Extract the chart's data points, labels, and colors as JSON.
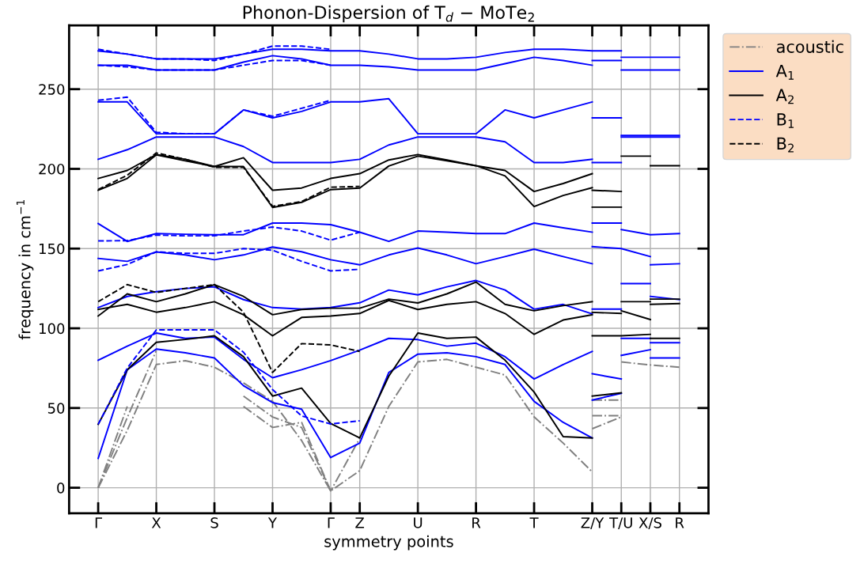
{
  "chart_data": {
    "type": "line",
    "title": "Phonon-Dispersion of T$_{d}$ − MoTe$_{2}$",
    "xlabel": "symmetry points",
    "ylabel": "frequency in cm$^{−1}$",
    "categories": [
      "Γ",
      null,
      "X",
      null,
      "S",
      null,
      "Y",
      null,
      "Γ",
      "Z",
      null,
      "U",
      null,
      "R",
      null,
      "T",
      null,
      "Z/Y",
      "T/U",
      "X/S",
      "R"
    ],
    "ylim": [
      -16,
      290
    ],
    "yticks": [
      0,
      50,
      100,
      150,
      200,
      250
    ],
    "grid": true,
    "legend": "right",
    "series": [
      {
        "name": "acoustic",
        "color": "#808080",
        "line_style": "dashdot",
        "values": [
          0,
          36,
          77.3,
          79.7,
          75.6,
          65.7,
          54.2,
          29.6,
          -2,
          10.7,
          51,
          78.9,
          80.5,
          75.6,
          70.7,
          44.4,
          28,
          9.9,
          null,
          null,
          null
        ]
      },
      {
        "color": "#808080",
        "line_style": "dashdot",
        "values": [
          null,
          null,
          null,
          null,
          null,
          null,
          null,
          null,
          null,
          null,
          null,
          null,
          null,
          null,
          null,
          null,
          null,
          55,
          55,
          null,
          null
        ]
      },
      {
        "color": "#808080",
        "line_style": "dashdot",
        "values": [
          null,
          null,
          null,
          null,
          null,
          null,
          null,
          null,
          null,
          null,
          null,
          null,
          null,
          null,
          null,
          null,
          null,
          null,
          78.9,
          77,
          75.6
        ]
      },
      {
        "color": "#808080",
        "line_style": "dashdot",
        "values": [
          0,
          44,
          86,
          null,
          null,
          57.5,
          44.4,
          37.8,
          -2,
          31,
          null,
          null,
          null,
          null,
          null,
          null,
          null,
          null,
          null,
          null,
          null
        ]
      },
      {
        "color": "#808080",
        "line_style": "dashdot",
        "values": [
          null,
          null,
          null,
          null,
          null,
          null,
          null,
          null,
          null,
          null,
          null,
          null,
          null,
          null,
          null,
          null,
          null,
          45.2,
          45.2,
          null,
          null
        ]
      },
      {
        "color": "#808080",
        "line_style": "dashdot",
        "values": [
          0,
          51,
          null,
          null,
          null,
          51,
          37.8,
          41,
          -2,
          null,
          null,
          null,
          null,
          null,
          null,
          null,
          null,
          null,
          null,
          null,
          null
        ]
      },
      {
        "color": "#808080",
        "line_style": "dashdot",
        "values": [
          null,
          null,
          null,
          null,
          null,
          null,
          null,
          null,
          null,
          null,
          null,
          null,
          null,
          null,
          null,
          null,
          null,
          37,
          44.4,
          null,
          null
        ]
      },
      {
        "name": "A$_{1}$",
        "color": "#0000ff",
        "line_style": "solid",
        "values": [
          274,
          272,
          269,
          269,
          269,
          272,
          275,
          275,
          274,
          274,
          272,
          269,
          269,
          270,
          273,
          275,
          275,
          274,
          274,
          null,
          null
        ]
      },
      {
        "color": "#0000ff",
        "line_style": "solid",
        "values": [
          null,
          null,
          null,
          null,
          null,
          null,
          null,
          null,
          null,
          null,
          null,
          null,
          null,
          null,
          null,
          null,
          null,
          null,
          270,
          270,
          270
        ]
      },
      {
        "color": "#0000ff",
        "line_style": "solid",
        "values": [
          265,
          265,
          262,
          262,
          262,
          267,
          271,
          269,
          265,
          265,
          264,
          262,
          262,
          262,
          266,
          270,
          268,
          265,
          null,
          null,
          null
        ]
      },
      {
        "color": "#0000ff",
        "line_style": "solid",
        "values": [
          null,
          null,
          null,
          null,
          null,
          null,
          null,
          null,
          null,
          null,
          null,
          null,
          null,
          null,
          null,
          null,
          null,
          268,
          268,
          null,
          null
        ]
      },
      {
        "color": "#0000ff",
        "line_style": "solid",
        "values": [
          null,
          null,
          null,
          null,
          null,
          null,
          null,
          null,
          null,
          null,
          null,
          null,
          null,
          null,
          null,
          null,
          null,
          null,
          262,
          262,
          262
        ]
      },
      {
        "color": "#0000ff",
        "line_style": "solid",
        "values": [
          242,
          242,
          222,
          222,
          222,
          237,
          232,
          236,
          242,
          242,
          244,
          222,
          222,
          222,
          237,
          232,
          237,
          242,
          null,
          null,
          null
        ]
      },
      {
        "color": "#0000ff",
        "line_style": "solid",
        "values": [
          null,
          null,
          null,
          null,
          null,
          null,
          null,
          null,
          null,
          null,
          null,
          null,
          null,
          null,
          null,
          null,
          null,
          232,
          232,
          null,
          null
        ]
      },
      {
        "color": "#0000ff",
        "line_style": "solid",
        "values": [
          null,
          null,
          null,
          null,
          null,
          null,
          null,
          null,
          null,
          null,
          null,
          null,
          null,
          null,
          null,
          null,
          null,
          null,
          221,
          221,
          221
        ]
      },
      {
        "color": "#0000ff",
        "line_style": "solid",
        "values": [
          206,
          212,
          220,
          220,
          220,
          214,
          204,
          204,
          204,
          206,
          215,
          220,
          220,
          220,
          217,
          204,
          204,
          206,
          null,
          null,
          null
        ]
      },
      {
        "color": "#0000ff",
        "line_style": "solid",
        "values": [
          null,
          null,
          null,
          null,
          null,
          null,
          null,
          null,
          null,
          null,
          null,
          null,
          null,
          null,
          null,
          null,
          null,
          204,
          204,
          null,
          null
        ]
      },
      {
        "color": "#0000ff",
        "line_style": "solid",
        "values": [
          null,
          null,
          null,
          null,
          null,
          null,
          null,
          null,
          null,
          null,
          null,
          null,
          null,
          null,
          null,
          null,
          null,
          null,
          220,
          220,
          220
        ]
      },
      {
        "color": "#0000ff",
        "line_style": "solid",
        "values": [
          165.7,
          154.5,
          159.4,
          159,
          158.7,
          158.7,
          166,
          166,
          165,
          160.3,
          154.5,
          161,
          160.3,
          159.4,
          159.4,
          166,
          163,
          160.3,
          null,
          null,
          null
        ]
      },
      {
        "color": "#0000ff",
        "line_style": "solid",
        "values": [
          null,
          null,
          null,
          null,
          null,
          null,
          null,
          null,
          null,
          null,
          null,
          null,
          null,
          null,
          null,
          null,
          null,
          166,
          166,
          null,
          null
        ]
      },
      {
        "color": "#0000ff",
        "line_style": "solid",
        "values": [
          null,
          null,
          null,
          null,
          null,
          null,
          null,
          null,
          null,
          null,
          null,
          null,
          null,
          null,
          null,
          null,
          null,
          null,
          161.9,
          158.7,
          159.4
        ]
      },
      {
        "color": "#0000ff",
        "line_style": "solid",
        "values": [
          143.8,
          142,
          147.9,
          146,
          143,
          146,
          151,
          148,
          143,
          139.8,
          146,
          150.4,
          146,
          140.5,
          145,
          149.6,
          145,
          140.5,
          null,
          null,
          null
        ]
      },
      {
        "color": "#0000ff",
        "line_style": "solid",
        "values": [
          null,
          null,
          null,
          null,
          null,
          null,
          null,
          null,
          null,
          null,
          null,
          null,
          null,
          null,
          null,
          null,
          null,
          151.2,
          150,
          145,
          null
        ]
      },
      {
        "color": "#0000ff",
        "line_style": "solid",
        "values": [
          null,
          null,
          null,
          null,
          null,
          null,
          null,
          null,
          null,
          null,
          null,
          null,
          null,
          null,
          null,
          null,
          null,
          null,
          null,
          139.8,
          140.5
        ]
      },
      {
        "color": "#0000ff",
        "line_style": "solid",
        "values": [
          113,
          120,
          123,
          125,
          126,
          118,
          113,
          112,
          113,
          116,
          124,
          121,
          126,
          130,
          124,
          112,
          115,
          109,
          null,
          null,
          null
        ]
      },
      {
        "color": "#0000ff",
        "line_style": "solid",
        "values": [
          null,
          null,
          null,
          null,
          null,
          null,
          null,
          null,
          null,
          null,
          null,
          null,
          null,
          null,
          null,
          null,
          null,
          112,
          112,
          null,
          null
        ]
      },
      {
        "color": "#0000ff",
        "line_style": "solid",
        "values": [
          null,
          null,
          null,
          null,
          null,
          null,
          null,
          null,
          null,
          null,
          null,
          null,
          null,
          null,
          null,
          null,
          null,
          null,
          128,
          128,
          null
        ]
      },
      {
        "color": "#0000ff",
        "line_style": "solid",
        "values": [
          null,
          null,
          null,
          null,
          null,
          null,
          null,
          null,
          null,
          null,
          null,
          null,
          null,
          null,
          null,
          null,
          null,
          null,
          null,
          120,
          118
        ]
      },
      {
        "color": "#0000ff",
        "line_style": "solid",
        "values": [
          80,
          88.8,
          97,
          93.7,
          94.5,
          80.5,
          69,
          74,
          79.7,
          86.3,
          93.7,
          92.9,
          88.8,
          90.7,
          82.2,
          68.2,
          77.3,
          85.5,
          null,
          null,
          null
        ]
      },
      {
        "color": "#0000ff",
        "line_style": "solid",
        "values": [
          null,
          null,
          null,
          null,
          null,
          null,
          null,
          null,
          null,
          null,
          null,
          null,
          null,
          null,
          null,
          null,
          null,
          71.5,
          68.2,
          null,
          null
        ]
      },
      {
        "color": "#0000ff",
        "line_style": "solid",
        "values": [
          null,
          null,
          null,
          null,
          null,
          null,
          null,
          null,
          null,
          null,
          null,
          null,
          null,
          null,
          null,
          null,
          null,
          null,
          93.7,
          93.7,
          null
        ]
      },
      {
        "color": "#0000ff",
        "line_style": "solid",
        "values": [
          null,
          null,
          null,
          null,
          null,
          null,
          null,
          null,
          null,
          null,
          null,
          null,
          null,
          null,
          null,
          null,
          null,
          null,
          null,
          91,
          91
        ]
      },
      {
        "color": "#0000ff",
        "line_style": "solid",
        "values": [
          18.4,
          74,
          87,
          84.6,
          81.4,
          64,
          53.4,
          49.3,
          18.9,
          28,
          72.3,
          83.8,
          84.6,
          82.2,
          77.3,
          54.2,
          41,
          31.2,
          null,
          null,
          null
        ]
      },
      {
        "color": "#0000ff",
        "line_style": "solid",
        "values": [
          null,
          null,
          null,
          null,
          null,
          null,
          null,
          null,
          null,
          null,
          null,
          null,
          null,
          null,
          null,
          null,
          null,
          55,
          59.2,
          null,
          null
        ]
      },
      {
        "color": "#0000ff",
        "line_style": "solid",
        "values": [
          null,
          null,
          null,
          null,
          null,
          null,
          null,
          null,
          null,
          null,
          null,
          null,
          null,
          null,
          null,
          null,
          null,
          null,
          83,
          86.6,
          null
        ]
      },
      {
        "color": "#0000ff",
        "line_style": "solid",
        "values": [
          null,
          null,
          null,
          null,
          null,
          null,
          null,
          null,
          null,
          null,
          null,
          null,
          null,
          null,
          null,
          null,
          null,
          null,
          null,
          81.4,
          81.4
        ]
      },
      {
        "name": "A$_{2}$",
        "color": "#000000",
        "line_style": "solid",
        "values": [
          194,
          199,
          209,
          206,
          201.5,
          207,
          186.6,
          188,
          194,
          197,
          205.6,
          209,
          205.6,
          202,
          199,
          185.8,
          190.8,
          197,
          null,
          null,
          null
        ]
      },
      {
        "color": "#000000",
        "line_style": "solid",
        "values": [
          null,
          null,
          null,
          null,
          null,
          null,
          null,
          null,
          null,
          null,
          null,
          null,
          null,
          null,
          null,
          null,
          null,
          186.6,
          185.8,
          null,
          null
        ]
      },
      {
        "color": "#000000",
        "line_style": "solid",
        "values": [
          null,
          null,
          null,
          null,
          null,
          null,
          null,
          null,
          null,
          null,
          null,
          null,
          null,
          null,
          null,
          null,
          null,
          null,
          208,
          208,
          null
        ]
      },
      {
        "color": "#000000",
        "line_style": "solid",
        "values": [
          null,
          null,
          null,
          null,
          null,
          null,
          null,
          null,
          null,
          null,
          null,
          null,
          null,
          null,
          null,
          null,
          null,
          null,
          null,
          202,
          202
        ]
      },
      {
        "color": "#000000",
        "line_style": "solid",
        "values": [
          186.6,
          194,
          208.8,
          205,
          201.5,
          201.5,
          175.8,
          179,
          187,
          188,
          201.8,
          208,
          205,
          202,
          195.6,
          176.4,
          183.3,
          188.2,
          null,
          null,
          null
        ]
      },
      {
        "color": "#000000",
        "line_style": "solid",
        "values": [
          null,
          null,
          null,
          null,
          null,
          null,
          null,
          null,
          null,
          null,
          null,
          null,
          null,
          null,
          null,
          null,
          null,
          176,
          176,
          null,
          null
        ]
      },
      {
        "color": "#000000",
        "line_style": "solid",
        "values": [
          107.7,
          121.6,
          116.7,
          121.6,
          127.4,
          120,
          108.5,
          111.8,
          112.6,
          112.6,
          118.3,
          115.9,
          121.6,
          129,
          115,
          111,
          114.2,
          116.7,
          null,
          null,
          null
        ]
      },
      {
        "color": "#000000",
        "line_style": "solid",
        "values": [
          null,
          null,
          null,
          null,
          null,
          null,
          null,
          null,
          null,
          null,
          null,
          null,
          null,
          null,
          null,
          null,
          null,
          110,
          109.3,
          null,
          null
        ]
      },
      {
        "color": "#000000",
        "line_style": "solid",
        "values": [
          null,
          null,
          null,
          null,
          null,
          null,
          null,
          null,
          null,
          null,
          null,
          null,
          null,
          null,
          null,
          null,
          null,
          null,
          111,
          105.5,
          null
        ]
      },
      {
        "color": "#000000",
        "line_style": "solid",
        "values": [
          null,
          null,
          null,
          null,
          null,
          null,
          null,
          null,
          null,
          null,
          null,
          null,
          null,
          null,
          null,
          null,
          null,
          null,
          null,
          118.3,
          118.3
        ]
      },
      {
        "color": "#000000",
        "line_style": "solid",
        "values": [
          111.8,
          115,
          110.1,
          113,
          116.7,
          108.5,
          95.3,
          106.8,
          107.7,
          109.3,
          117.5,
          111.8,
          115,
          116.7,
          109.3,
          96.2,
          105.2,
          108.5,
          null,
          null,
          null
        ]
      },
      {
        "color": "#000000",
        "line_style": "solid",
        "values": [
          null,
          null,
          null,
          null,
          null,
          null,
          null,
          null,
          null,
          null,
          null,
          null,
          null,
          null,
          null,
          null,
          null,
          95.3,
          95.3,
          96.2,
          null
        ]
      },
      {
        "color": "#000000",
        "line_style": "solid",
        "values": [
          null,
          null,
          null,
          null,
          null,
          null,
          null,
          null,
          null,
          null,
          null,
          null,
          null,
          null,
          null,
          null,
          null,
          null,
          116.7,
          116.7,
          null
        ]
      },
      {
        "color": "#000000",
        "line_style": "solid",
        "values": [
          null,
          null,
          null,
          null,
          null,
          null,
          null,
          null,
          null,
          null,
          null,
          null,
          null,
          null,
          null,
          null,
          null,
          null,
          null,
          115,
          115.5
        ]
      },
      {
        "color": "#000000",
        "line_style": "solid",
        "values": [
          39.8,
          74,
          91.2,
          93,
          95.3,
          82.2,
          57.5,
          62.5,
          40.3,
          31.2,
          70,
          97,
          93.7,
          94.5,
          80,
          60,
          32,
          31.2,
          null,
          null,
          null
        ]
      },
      {
        "color": "#000000",
        "line_style": "solid",
        "values": [
          null,
          null,
          null,
          null,
          null,
          null,
          null,
          null,
          null,
          null,
          null,
          null,
          null,
          null,
          null,
          null,
          null,
          57.5,
          59.5,
          null,
          null
        ]
      },
      {
        "color": "#000000",
        "line_style": "solid",
        "values": [
          null,
          null,
          null,
          null,
          null,
          null,
          null,
          null,
          null,
          null,
          null,
          null,
          null,
          null,
          null,
          null,
          null,
          null,
          null,
          93.7,
          93.7
        ]
      },
      {
        "name": "B$_{1}$",
        "color": "#0000ff",
        "line_style": "dashed",
        "values": [
          275,
          272,
          269,
          269,
          268,
          272,
          277,
          277,
          275,
          null,
          null,
          null,
          null,
          null,
          null,
          null,
          null,
          null,
          null,
          null,
          null
        ]
      },
      {
        "color": "#0000ff",
        "line_style": "dashed",
        "values": [
          265,
          264,
          262,
          262,
          262,
          265,
          268,
          268,
          265,
          null,
          null,
          null,
          null,
          null,
          null,
          null,
          null,
          null,
          null,
          null,
          null
        ]
      },
      {
        "color": "#0000ff",
        "line_style": "dashed",
        "values": [
          243,
          245,
          223,
          222,
          222,
          237,
          233,
          238,
          243,
          null,
          null,
          null,
          null,
          null,
          null,
          null,
          null,
          null,
          null,
          null,
          null
        ]
      },
      {
        "color": "#0000ff",
        "line_style": "dashed",
        "values": [
          154.8,
          155,
          158.5,
          158,
          158,
          161,
          163.5,
          161,
          155.3,
          160.3,
          null,
          null,
          null,
          null,
          null,
          null,
          null,
          null,
          null,
          null,
          null
        ]
      },
      {
        "color": "#0000ff",
        "line_style": "dashed",
        "values": [
          136,
          140,
          148,
          147,
          147,
          150,
          149,
          142,
          136,
          137,
          null,
          null,
          null,
          null,
          null,
          null,
          null,
          null,
          null,
          null,
          null
        ]
      },
      {
        "color": "#0000ff",
        "line_style": "dashed",
        "values": [
          39.8,
          75,
          99,
          99,
          99,
          85,
          61.6,
          45,
          40,
          42,
          null,
          null,
          null,
          null,
          null,
          null,
          null,
          null,
          null,
          null,
          null
        ]
      },
      {
        "name": "B$_{2}$",
        "color": "#000000",
        "line_style": "dashed",
        "values": [
          187,
          196,
          210,
          206,
          201,
          201,
          176.5,
          179.5,
          188.5,
          189,
          null,
          null,
          null,
          null,
          null,
          null,
          null,
          null,
          null,
          null,
          null
        ]
      },
      {
        "color": "#000000",
        "line_style": "dashed",
        "values": [
          116.7,
          127.4,
          122.5,
          125,
          127.4,
          110.1,
          72.3,
          90.4,
          89.6,
          85.5,
          null,
          null,
          null,
          null,
          null,
          null,
          null,
          null,
          null,
          null,
          null
        ]
      }
    ]
  }
}
